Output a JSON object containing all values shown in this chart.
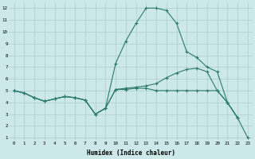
{
  "xlabel": "Humidex (Indice chaleur)",
  "bg_color": "#cce8e8",
  "line_color": "#2a7a6e",
  "grid_color": "#aacece",
  "ylim_min": 0.8,
  "ylim_max": 12.5,
  "xlim_min": -0.5,
  "xlim_max": 23.5,
  "yticks": [
    1,
    2,
    3,
    4,
    5,
    6,
    7,
    8,
    9,
    10,
    11,
    12
  ],
  "xticks": [
    0,
    1,
    2,
    3,
    4,
    5,
    6,
    7,
    8,
    9,
    10,
    11,
    12,
    13,
    14,
    15,
    16,
    17,
    18,
    19,
    20,
    21,
    22,
    23
  ],
  "line1_x": [
    0,
    1,
    2,
    3,
    4,
    5,
    6,
    7,
    8,
    9,
    10,
    11,
    12,
    13,
    14,
    15,
    16,
    17,
    18,
    19,
    20,
    21,
    22,
    23
  ],
  "line1_y": [
    5.0,
    4.8,
    4.4,
    4.1,
    4.3,
    4.5,
    4.4,
    4.2,
    3.0,
    3.5,
    5.1,
    5.1,
    5.2,
    5.2,
    5.0,
    5.0,
    5.0,
    5.0,
    5.0,
    5.0,
    5.0,
    4.0,
    2.7,
    1.0
  ],
  "line2_x": [
    0,
    1,
    2,
    3,
    4,
    5,
    6,
    7,
    8,
    9,
    10,
    11,
    12,
    13,
    14,
    15,
    16,
    17,
    18,
    19,
    20,
    21,
    22
  ],
  "line2_y": [
    5.0,
    4.8,
    4.4,
    4.1,
    4.3,
    4.5,
    4.4,
    4.2,
    3.0,
    3.5,
    7.3,
    9.2,
    10.7,
    12.0,
    12.0,
    11.8,
    10.7,
    8.3,
    7.8,
    7.0,
    6.6,
    4.0,
    2.7
  ],
  "line3_x": [
    0,
    1,
    2,
    3,
    4,
    5,
    6,
    7,
    8,
    9,
    10,
    11,
    12,
    13,
    14,
    15,
    16,
    17,
    18,
    19,
    20,
    21,
    22
  ],
  "line3_y": [
    5.0,
    4.8,
    4.4,
    4.1,
    4.3,
    4.5,
    4.4,
    4.2,
    3.0,
    3.5,
    5.1,
    5.2,
    5.3,
    5.4,
    5.6,
    6.1,
    6.5,
    6.8,
    6.9,
    6.6,
    5.0,
    4.0,
    2.7
  ]
}
